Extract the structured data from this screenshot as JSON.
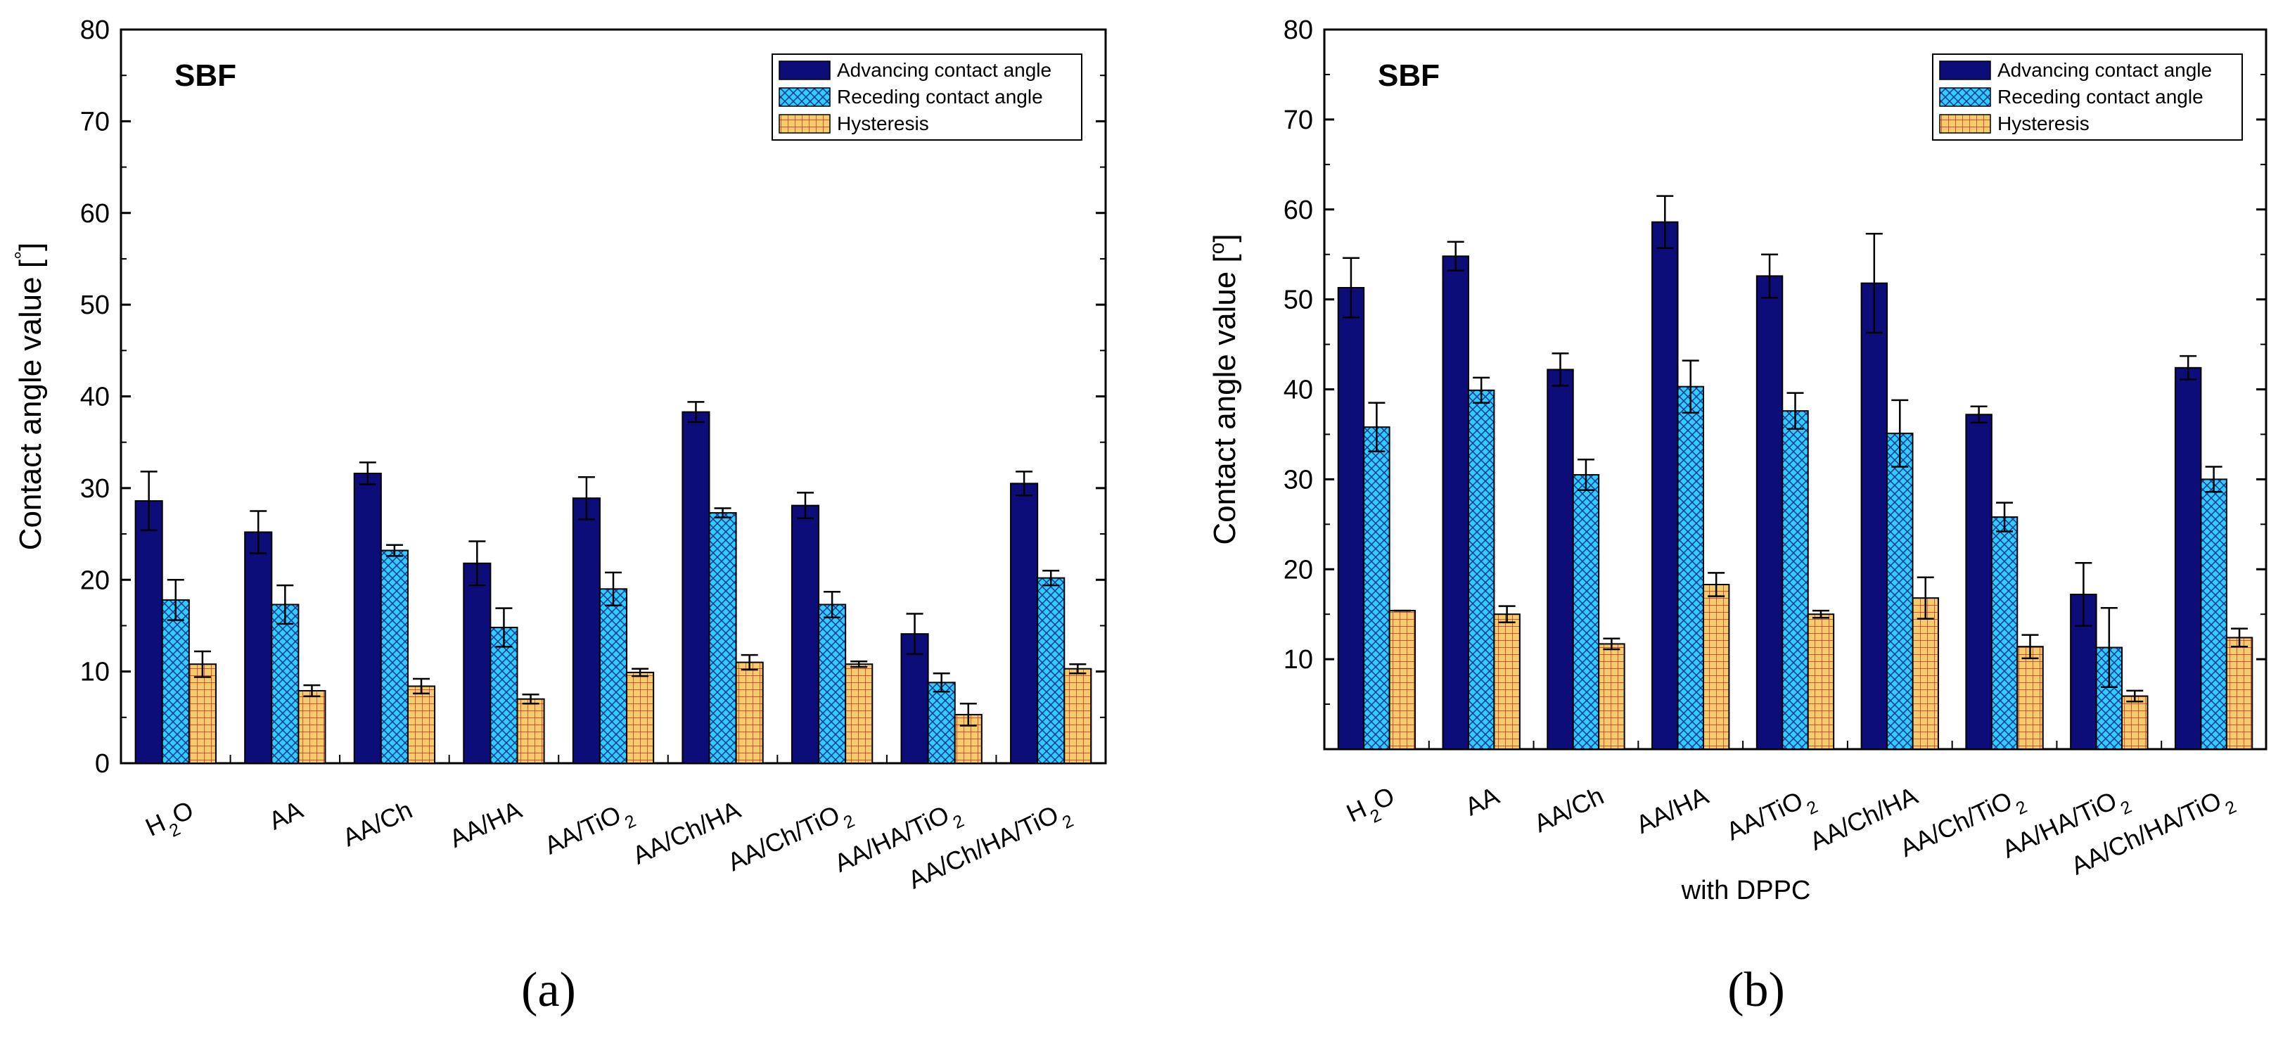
{
  "colors": {
    "advancing": "#0d0d7a",
    "receding": "#2ecfff",
    "receding_hatch": "#1a3a9a",
    "hysteresis": "#f4cc6c",
    "hysteresis_grid": "#c62828"
  },
  "chart_data": [
    {
      "type": "bar",
      "panel_label": "(a)",
      "annotation": "SBF",
      "ylabel": "Contact angle value [°]",
      "ylabel_text": "Contact angle value [",
      "ylabel_unit": "°",
      "ylabel_close": "]",
      "xlabel": "",
      "ylim": [
        0,
        80
      ],
      "yticks": [
        "0",
        "10",
        "20",
        "30",
        "40",
        "50",
        "60",
        "70",
        "80"
      ],
      "legend_position": "top-right",
      "categories": [
        "H2O",
        "AA",
        "AA/Ch",
        "AA/HA",
        "AA/TiO2",
        "AA/Ch/HA",
        "AA/Ch/TiO2",
        "AA/HA/TiO2",
        "AA/Ch/HA/TiO2"
      ],
      "series": [
        {
          "name": "Advancing contact angle",
          "key": "advancing",
          "values": [
            28.6,
            25.2,
            31.6,
            21.8,
            28.9,
            38.3,
            28.1,
            14.1,
            30.5
          ],
          "errors": [
            3.2,
            2.3,
            1.2,
            2.4,
            2.3,
            1.1,
            1.4,
            2.2,
            1.3
          ]
        },
        {
          "name": "Receding contact angle",
          "key": "receding",
          "values": [
            17.8,
            17.3,
            23.2,
            14.8,
            19.0,
            27.3,
            17.3,
            8.8,
            20.2
          ],
          "errors": [
            2.2,
            2.1,
            0.6,
            2.1,
            1.8,
            0.5,
            1.4,
            1.0,
            0.8
          ]
        },
        {
          "name": "Hysteresis",
          "key": "hysteresis",
          "values": [
            10.8,
            7.9,
            8.4,
            7.0,
            9.9,
            11.0,
            10.8,
            5.3,
            10.3
          ],
          "errors": [
            1.4,
            0.6,
            0.8,
            0.5,
            0.4,
            0.8,
            0.3,
            1.2,
            0.5
          ]
        }
      ]
    },
    {
      "type": "bar",
      "panel_label": "(b)",
      "annotation": "SBF",
      "ylabel": "Contact angle value [o]",
      "ylabel_text": "Contact angle value [",
      "ylabel_unit": "o",
      "ylabel_close": "]",
      "xlabel": "with DPPC",
      "ylim": [
        0,
        80
      ],
      "yticks": [
        "10",
        "20",
        "30",
        "40",
        "50",
        "60",
        "70",
        "80"
      ],
      "legend_position": "top-right",
      "categories": [
        "H2O",
        "AA",
        "AA/Ch",
        "AA/HA",
        "AA/TiO2",
        "AA/Ch/HA",
        "AA/Ch/TiO2",
        "AA/HA/TiO2",
        "AA/Ch/HA/TiO2"
      ],
      "series": [
        {
          "name": "Advancing contact angle",
          "key": "advancing",
          "values": [
            51.3,
            54.8,
            42.2,
            58.6,
            52.6,
            51.8,
            37.2,
            17.2,
            42.4
          ],
          "errors": [
            3.3,
            1.6,
            1.8,
            2.9,
            2.4,
            5.5,
            0.9,
            3.5,
            1.3
          ]
        },
        {
          "name": "Receding contact angle",
          "key": "receding",
          "values": [
            35.8,
            39.9,
            30.5,
            40.3,
            37.6,
            35.1,
            25.8,
            11.3,
            30.0
          ],
          "errors": [
            2.7,
            1.4,
            1.7,
            2.9,
            2.0,
            3.7,
            1.6,
            4.4,
            1.4
          ]
        },
        {
          "name": "Hysteresis",
          "key": "hysteresis",
          "values": [
            15.4,
            15.0,
            11.7,
            18.3,
            15.0,
            16.8,
            11.4,
            5.9,
            12.4
          ],
          "errors": [
            0.0,
            0.9,
            0.6,
            1.3,
            0.4,
            2.3,
            1.3,
            0.6,
            1.0
          ]
        }
      ]
    }
  ]
}
